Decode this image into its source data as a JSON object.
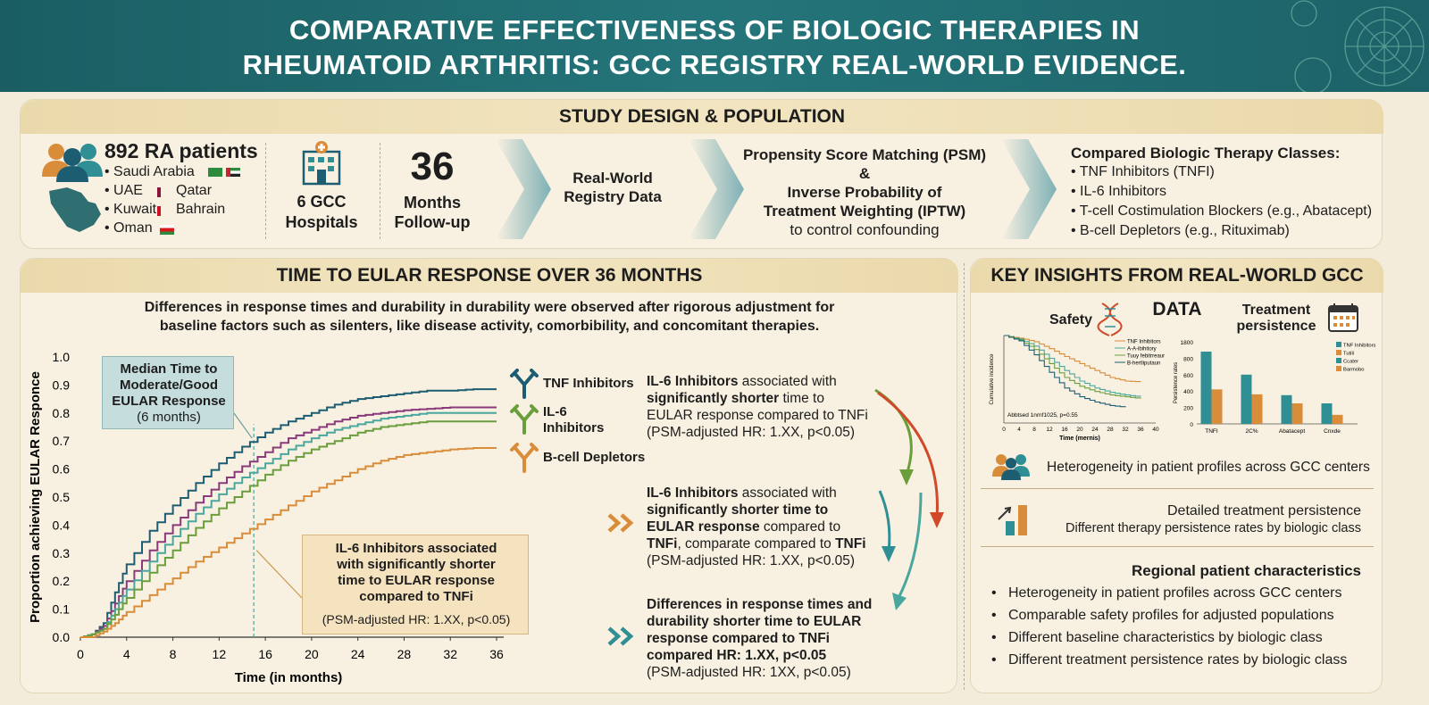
{
  "header": {
    "title_line1": "COMPARATIVE EFFECTIVENESS OF BIOLOGIC THERAPIES IN",
    "title_line2": "RHEUMATOID ARTHRITIS: GCC REGISTRY REAL-WORLD EVIDENCE."
  },
  "study": {
    "title": "STUDY DESIGN & POPULATION",
    "patients": "892 RA patients",
    "countries": [
      "Saudi Arabia",
      "UAE",
      "Qatar",
      "Kuwait",
      "Bahrain",
      "Oman"
    ],
    "hospitals_count": "6 GCC",
    "hospitals_label": "Hospitals",
    "months": "36",
    "months_label1": "Months",
    "months_label2": "Follow-up",
    "registry_line1": "Real-World",
    "registry_line2": "Registry Data",
    "psm_line1": "Propensity Score Matching (PSM)",
    "psm_line2": "&",
    "psm_line3": "Inverse Probability of",
    "psm_line4": "Treatment Weighting (IPTW)",
    "psm_line5": "to control confounding",
    "compared_title": "Compared Biologic Therapy Classes:",
    "classes": [
      "TNF Inhibitors (TNFI)",
      "IL-6 Inhibitors",
      "T-cell Costimulation Blockers (e.g., Abatacept)",
      "B-cell Depletors (e.g., Rituximab)"
    ]
  },
  "eular": {
    "title": "TIME TO EULAR RESPONSE OVER 36 MONTHS",
    "desc_line1": "Differences in response times and durability in durability were observed after rigorous adjustment for",
    "desc_line2": "baseline factors such as silenters, like disease activity, comorbibility, and concomitant therapies.",
    "median_box": [
      "Median Time to",
      "Moderate/Good",
      "EULAR Response",
      "(6 months)"
    ],
    "il6_box": [
      "IL-6 Inhibitors associated",
      "with significantly shorter",
      "time to EULAR response",
      "compared to TNFi"
    ],
    "il6_box_note": "(PSM-adjusted HR: 1.XX, p<0.05)",
    "legend": [
      "TNF Inhibitors",
      "IL-6",
      "Inhibitors",
      "B-cell Depletors"
    ],
    "finding1": {
      "bold": "IL-6 Inhibitors",
      "line1_rest": " associated with",
      "line2_bold": "significantly shorter",
      "line2_rest": " time to",
      "line3": "EULAR response compared to TNFi",
      "line4": "(PSM-adjusted HR: 1.XX, p<0.05)"
    },
    "finding2": {
      "bold": "IL-6 Inhibitors",
      "line1_rest": " associated with",
      "line2": "significantly shorter time to",
      "line3": "EULAR response",
      "line3_rest": " compared to",
      "line4_bold": "TNFi",
      "line4_rest": ", comparate compared to ",
      "line4_bold2": "TNFi",
      "line5": "(PSM-adjusted HR: 1.XX, p<0.05)"
    },
    "finding3": {
      "line1": "Differences in response times and",
      "line2": "durability shorter time to EULAR",
      "line3": "response compared to TNFi",
      "line4": "compared HR: 1.XX, p<0.05",
      "line5": "(PSM-adjusted HR: 1XX, p<0.05)"
    }
  },
  "insights": {
    "title": "KEY INSIGHTS FROM REAL-WORLD GCC DATA",
    "safety_label": "Safety",
    "persistence_label1": "Treatment",
    "persistence_label2": "persistence",
    "safety_legend": [
      "TNF Inhibitors",
      "A-A-ibihitory",
      "Tuuy febitrreaurs",
      "B-hertliputaun"
    ],
    "safety_ylabel": "Cumulative incidence",
    "safety_annot": "Abbtsed 1nrnf1025, p=0.55",
    "safety_xlabel": "Time (mernis)",
    "safety_xticks": [
      "0",
      "4",
      "8",
      "12",
      "16",
      "20",
      "24",
      "28",
      "32",
      "36",
      "40"
    ],
    "persist_ylabel": "Persistence rates",
    "persist_legend": [
      "TNF Inhibitors",
      "Tutili",
      "Ccater",
      "Barmobo"
    ],
    "persist_yticks": [
      "1800",
      "800",
      "600",
      "400",
      "200",
      "0"
    ],
    "persist_categories": [
      "TNFI",
      "2C%",
      "Abatacept",
      "Cnxde"
    ],
    "row1": "Heterogeneity in patient profiles across GCC centers",
    "row2_title": "Detailed treatment persistence",
    "row2_sub": "Different therapy persistence rates by biologic class",
    "regional_title": "Regional patient characteristics",
    "regional_items": [
      "Heterogeneity in patient profiles across GCC centers",
      "Comparable safety profiles for adjusted populations",
      "Different baseline characteristics by biologic class",
      "Different treatment persistence rates by biologic class"
    ]
  },
  "colors": {
    "teal": "#1a5e63",
    "tnf": "#1d5d72",
    "il6": "#8a3a7b",
    "tcell": "#4aa79e",
    "tcell2": "#6a9e3c",
    "bcell": "#d98c3a"
  },
  "chart_data": [
    {
      "type": "line",
      "title": "",
      "xlabel": "Time (in months)",
      "ylabel": "Proportion achieving EULAR Responce",
      "xlim": [
        0,
        36
      ],
      "ylim": [
        0,
        1.0
      ],
      "xticks": [
        0,
        4,
        8,
        12,
        16,
        20,
        24,
        28,
        32,
        36
      ],
      "yticks": [
        0.0,
        0.1,
        0.2,
        0.3,
        0.4,
        0.5,
        0.6,
        0.7,
        0.8,
        0.9,
        1.0
      ],
      "grid": false,
      "series": [
        {
          "name": "TNF Inhibitors",
          "color": "#1d5d72",
          "x": [
            0,
            1,
            2,
            3,
            4,
            6,
            8,
            10,
            12,
            14,
            16,
            18,
            20,
            22,
            24,
            26,
            28,
            30,
            32,
            34,
            36
          ],
          "y": [
            0,
            0.01,
            0.05,
            0.16,
            0.26,
            0.38,
            0.47,
            0.55,
            0.62,
            0.68,
            0.73,
            0.77,
            0.8,
            0.83,
            0.85,
            0.86,
            0.87,
            0.88,
            0.88,
            0.885,
            0.885
          ]
        },
        {
          "color": "#8a3a7b",
          "x": [
            0,
            1,
            2,
            3,
            4,
            6,
            8,
            10,
            12,
            14,
            16,
            18,
            20,
            22,
            24,
            26,
            28,
            30,
            32,
            34,
            36
          ],
          "y": [
            0,
            0.01,
            0.04,
            0.12,
            0.2,
            0.31,
            0.4,
            0.48,
            0.55,
            0.61,
            0.66,
            0.71,
            0.74,
            0.77,
            0.79,
            0.8,
            0.81,
            0.815,
            0.82,
            0.82,
            0.82
          ]
        },
        {
          "color": "#4aa79e",
          "x": [
            0,
            1,
            2,
            3,
            4,
            6,
            8,
            10,
            12,
            14,
            16,
            18,
            20,
            22,
            24,
            26,
            28,
            30,
            32,
            34,
            36
          ],
          "y": [
            0,
            0.01,
            0.03,
            0.1,
            0.17,
            0.27,
            0.36,
            0.44,
            0.51,
            0.57,
            0.62,
            0.67,
            0.71,
            0.74,
            0.76,
            0.78,
            0.79,
            0.8,
            0.8,
            0.8,
            0.8
          ]
        },
        {
          "color": "#6a9e3c",
          "x": [
            0,
            1,
            2,
            3,
            4,
            6,
            8,
            10,
            12,
            14,
            16,
            18,
            20,
            22,
            24,
            26,
            28,
            30,
            32,
            34,
            36
          ],
          "y": [
            0,
            0.01,
            0.03,
            0.08,
            0.14,
            0.23,
            0.31,
            0.39,
            0.46,
            0.52,
            0.58,
            0.63,
            0.67,
            0.7,
            0.73,
            0.75,
            0.76,
            0.77,
            0.77,
            0.77,
            0.77
          ]
        },
        {
          "name": "B-cell Depletors",
          "color": "#d98c3a",
          "x": [
            0,
            1,
            2,
            3,
            4,
            6,
            8,
            10,
            12,
            14,
            16,
            18,
            20,
            22,
            24,
            26,
            28,
            30,
            32,
            34,
            36
          ],
          "y": [
            0,
            0.0,
            0.02,
            0.05,
            0.09,
            0.15,
            0.21,
            0.27,
            0.32,
            0.37,
            0.42,
            0.47,
            0.52,
            0.56,
            0.6,
            0.63,
            0.65,
            0.66,
            0.67,
            0.675,
            0.675
          ]
        }
      ]
    },
    {
      "type": "line",
      "title": "Safety",
      "xlabel": "Time (mernis)",
      "ylabel": "Cumulative incidence",
      "xlim": [
        0,
        40
      ],
      "ylim": [
        0,
        1.0
      ],
      "series": [
        {
          "name": "TNF Inhibitors",
          "color": "#d98c3a",
          "x": [
            0,
            4,
            8,
            12,
            16,
            20,
            24,
            28,
            32,
            36
          ],
          "y": [
            1.0,
            0.97,
            0.93,
            0.85,
            0.76,
            0.68,
            0.6,
            0.52,
            0.48,
            0.47
          ]
        },
        {
          "name": "A-A-ibihitory",
          "color": "#4aa79e",
          "x": [
            0,
            4,
            8,
            12,
            16,
            20,
            24,
            28,
            32,
            36
          ],
          "y": [
            1.0,
            0.96,
            0.88,
            0.74,
            0.6,
            0.48,
            0.4,
            0.35,
            0.32,
            0.3
          ]
        },
        {
          "name": "Tuuy febitrreaurs",
          "color": "#6a9e3c",
          "x": [
            0,
            4,
            8,
            12,
            16,
            20,
            24,
            28,
            32,
            36
          ],
          "y": [
            1.0,
            0.95,
            0.84,
            0.68,
            0.52,
            0.42,
            0.36,
            0.32,
            0.3,
            0.28
          ]
        },
        {
          "name": "B-hertliputaun",
          "color": "#1d5d72",
          "x": [
            0,
            4,
            8,
            12,
            16,
            20,
            24,
            28,
            32
          ],
          "y": [
            1.0,
            0.94,
            0.78,
            0.58,
            0.4,
            0.3,
            0.24,
            0.2,
            0.18
          ]
        }
      ]
    },
    {
      "type": "bar",
      "title": "Treatment persistence",
      "categories": [
        "TNFI",
        "2C%",
        "Abatacept",
        "Cnxde"
      ],
      "series": [
        {
          "name": "TNF Inhibitors",
          "color": "#2f8f95",
          "values": [
            880,
            600,
            350,
            250
          ]
        },
        {
          "color": "#d98c3a",
          "values": [
            420,
            360,
            250,
            110
          ]
        }
      ],
      "ylabel": "Persistence rates",
      "ylim": [
        0,
        1000
      ]
    }
  ]
}
